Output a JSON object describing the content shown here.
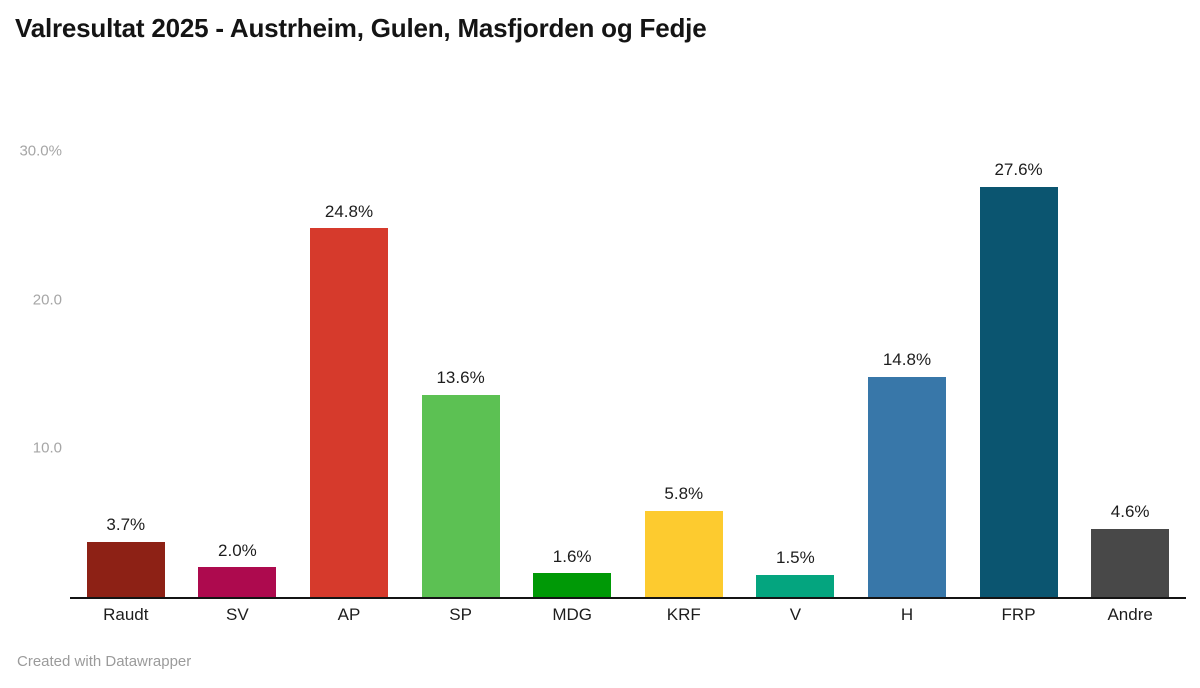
{
  "page": {
    "title": "Valresultat 2025 - Austrheim, Gulen, Masfjorden og Fedje",
    "footer": "Created with Datawrapper"
  },
  "chart_data": {
    "type": "bar",
    "title": "Valresultat 2025 - Austrheim, Gulen, Masfjorden og Fedje",
    "categories": [
      "Raudt",
      "SV",
      "AP",
      "SP",
      "MDG",
      "KRF",
      "V",
      "H",
      "FRP",
      "Andre"
    ],
    "values": [
      3.7,
      2.0,
      24.8,
      13.6,
      1.6,
      5.8,
      1.5,
      14.8,
      27.6,
      4.6
    ],
    "value_labels": [
      "3.7%",
      "2.0%",
      "24.8%",
      "13.6%",
      "1.6%",
      "5.8%",
      "1.5%",
      "14.8%",
      "27.6%",
      "4.6%"
    ],
    "bar_colors": [
      "#8d2115",
      "#ad0a4e",
      "#d63a2c",
      "#5cc153",
      "#009906",
      "#fdcb2f",
      "#04a57f",
      "#3877a9",
      "#0b5570",
      "#484848"
    ],
    "unit": "%",
    "xlabel": "",
    "ylabel": "",
    "ylim": [
      0,
      32.7
    ],
    "grid": false,
    "legend": "none",
    "y_ticks": [
      {
        "label": "10.0",
        "value": 10
      },
      {
        "label": "20.0",
        "value": 20
      },
      {
        "label": "30.0%",
        "value": 30
      }
    ],
    "attribution": "Created with Datawrapper"
  }
}
